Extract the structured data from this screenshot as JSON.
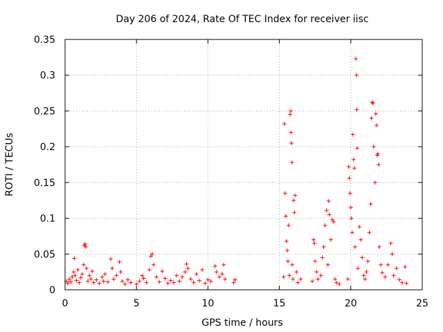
{
  "chart_data": {
    "type": "scatter",
    "title": "Day 206 of 2024, Rate Of TEC Index for receiver iisc",
    "xlabel": "GPS time / hours",
    "ylabel": "ROTI / TECUs",
    "xlim": [
      0,
      25
    ],
    "ylim": [
      0,
      0.35
    ],
    "grid": true,
    "marker": "+",
    "color": "#ff0000",
    "x_ticks": [
      "0",
      "5",
      "10",
      "15",
      "20",
      "25"
    ],
    "y_ticks": [
      "0",
      "0.05",
      "0.1",
      "0.15",
      "0.2",
      "0.25",
      "0.3",
      "0.35"
    ],
    "series": [
      {
        "name": "ROTI",
        "points": [
          [
            0.1,
            0.012
          ],
          [
            0.2,
            0.009
          ],
          [
            0.3,
            0.015
          ],
          [
            0.4,
            0.011
          ],
          [
            0.5,
            0.018
          ],
          [
            0.6,
            0.025
          ],
          [
            0.65,
            0.044
          ],
          [
            0.7,
            0.02
          ],
          [
            0.8,
            0.013
          ],
          [
            0.9,
            0.028
          ],
          [
            1.0,
            0.01
          ],
          [
            1.1,
            0.017
          ],
          [
            1.2,
            0.022
          ],
          [
            1.3,
            0.035
          ],
          [
            1.35,
            0.062
          ],
          [
            1.4,
            0.064
          ],
          [
            1.45,
            0.06
          ],
          [
            1.5,
            0.03
          ],
          [
            1.6,
            0.012
          ],
          [
            1.7,
            0.02
          ],
          [
            1.8,
            0.015
          ],
          [
            1.9,
            0.026
          ],
          [
            2.0,
            0.01
          ],
          [
            2.2,
            0.014
          ],
          [
            2.4,
            0.009
          ],
          [
            2.6,
            0.018
          ],
          [
            2.7,
            0.012
          ],
          [
            2.8,
            0.022
          ],
          [
            3.0,
            0.011
          ],
          [
            3.2,
            0.043
          ],
          [
            3.3,
            0.03
          ],
          [
            3.4,
            0.015
          ],
          [
            3.6,
            0.02
          ],
          [
            3.8,
            0.039
          ],
          [
            3.9,
            0.025
          ],
          [
            4.0,
            0.012
          ],
          [
            4.2,
            0.008
          ],
          [
            4.4,
            0.014
          ],
          [
            4.6,
            0.01
          ],
          [
            5.0,
            0.008
          ],
          [
            5.2,
            0.012
          ],
          [
            5.4,
            0.02
          ],
          [
            5.5,
            0.016
          ],
          [
            5.7,
            0.01
          ],
          [
            5.9,
            0.028
          ],
          [
            6.0,
            0.047
          ],
          [
            6.1,
            0.05
          ],
          [
            6.2,
            0.035
          ],
          [
            6.4,
            0.018
          ],
          [
            6.6,
            0.011
          ],
          [
            6.8,
            0.026
          ],
          [
            7.0,
            0.016
          ],
          [
            7.2,
            0.009
          ],
          [
            7.4,
            0.013
          ],
          [
            7.6,
            0.01
          ],
          [
            7.8,
            0.02
          ],
          [
            8.0,
            0.012
          ],
          [
            8.2,
            0.018
          ],
          [
            8.4,
            0.025
          ],
          [
            8.5,
            0.036
          ],
          [
            8.6,
            0.03
          ],
          [
            8.8,
            0.015
          ],
          [
            9.0,
            0.01
          ],
          [
            9.2,
            0.022
          ],
          [
            9.4,
            0.013
          ],
          [
            9.6,
            0.028
          ],
          [
            9.8,
            0.009
          ],
          [
            10.0,
            0.014
          ],
          [
            10.2,
            0.012
          ],
          [
            10.5,
            0.033
          ],
          [
            10.6,
            0.025
          ],
          [
            10.8,
            0.018
          ],
          [
            11.0,
            0.022
          ],
          [
            11.1,
            0.035
          ],
          [
            11.2,
            0.015
          ],
          [
            11.8,
            0.01
          ],
          [
            11.9,
            0.014
          ],
          [
            15.3,
            0.018
          ],
          [
            15.35,
            0.232
          ],
          [
            15.4,
            0.135
          ],
          [
            15.45,
            0.103
          ],
          [
            15.5,
            0.068
          ],
          [
            15.55,
            0.055
          ],
          [
            15.6,
            0.04
          ],
          [
            15.65,
            0.09
          ],
          [
            15.7,
            0.02
          ],
          [
            15.75,
            0.245
          ],
          [
            15.8,
            0.25
          ],
          [
            15.82,
            0.22
          ],
          [
            15.85,
            0.205
          ],
          [
            15.88,
            0.178
          ],
          [
            15.9,
            0.035
          ],
          [
            15.95,
            0.015
          ],
          [
            16.0,
            0.125
          ],
          [
            16.05,
            0.108
          ],
          [
            16.1,
            0.132
          ],
          [
            16.2,
            0.025
          ],
          [
            16.3,
            0.01
          ],
          [
            16.5,
            0.015
          ],
          [
            17.3,
            0.012
          ],
          [
            17.4,
            0.07
          ],
          [
            17.45,
            0.065
          ],
          [
            17.5,
            0.04
          ],
          [
            17.6,
            0.025
          ],
          [
            17.7,
            0.015
          ],
          [
            17.9,
            0.02
          ],
          [
            18.0,
            0.045
          ],
          [
            18.1,
            0.06
          ],
          [
            18.2,
            0.09
          ],
          [
            18.3,
            0.111
          ],
          [
            18.4,
            0.035
          ],
          [
            18.45,
            0.124
          ],
          [
            18.5,
            0.105
          ],
          [
            18.6,
            0.07
          ],
          [
            18.7,
            0.098
          ],
          [
            18.8,
            0.095
          ],
          [
            18.9,
            0.015
          ],
          [
            19.0,
            0.01
          ],
          [
            19.2,
            0.008
          ],
          [
            19.8,
            0.015
          ],
          [
            19.85,
            0.172
          ],
          [
            19.9,
            0.156
          ],
          [
            19.95,
            0.135
          ],
          [
            20.0,
            0.115
          ],
          [
            20.05,
            0.1
          ],
          [
            20.1,
            0.08
          ],
          [
            20.15,
            0.217
          ],
          [
            20.2,
            0.182
          ],
          [
            20.25,
            0.17
          ],
          [
            20.3,
            0.06
          ],
          [
            20.35,
            0.323
          ],
          [
            20.4,
            0.3
          ],
          [
            20.42,
            0.252
          ],
          [
            20.45,
            0.198
          ],
          [
            20.5,
            0.03
          ],
          [
            20.6,
            0.088
          ],
          [
            20.7,
            0.07
          ],
          [
            20.8,
            0.045
          ],
          [
            20.9,
            0.02
          ],
          [
            21.0,
            0.015
          ],
          [
            21.1,
            0.025
          ],
          [
            21.2,
            0.04
          ],
          [
            21.3,
            0.08
          ],
          [
            21.4,
            0.12
          ],
          [
            21.45,
            0.24
          ],
          [
            21.5,
            0.262
          ],
          [
            21.55,
            0.261
          ],
          [
            21.6,
            0.2
          ],
          [
            21.7,
            0.15
          ],
          [
            21.75,
            0.246
          ],
          [
            21.8,
            0.23
          ],
          [
            21.85,
            0.188
          ],
          [
            21.9,
            0.19
          ],
          [
            21.95,
            0.175
          ],
          [
            22.0,
            0.06
          ],
          [
            22.1,
            0.035
          ],
          [
            22.2,
            0.024
          ],
          [
            22.4,
            0.018
          ],
          [
            22.6,
            0.035
          ],
          [
            22.8,
            0.065
          ],
          [
            22.9,
            0.05
          ],
          [
            23.0,
            0.02
          ],
          [
            23.2,
            0.03
          ],
          [
            23.4,
            0.014
          ],
          [
            23.6,
            0.01
          ],
          [
            23.8,
            0.032
          ],
          [
            23.9,
            0.009
          ]
        ]
      }
    ]
  }
}
